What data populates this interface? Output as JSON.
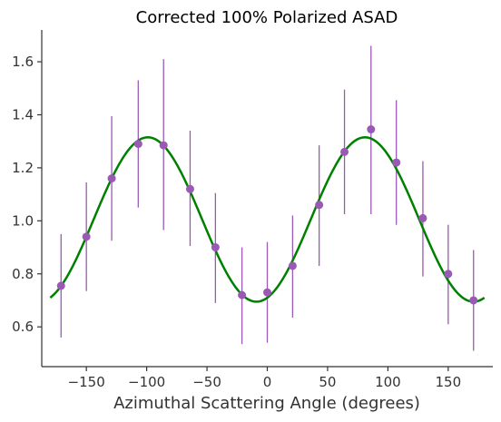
{
  "chart_data": {
    "type": "scatter",
    "title": "Corrected 100% Polarized ASAD",
    "xlabel": "Azimuthal Scattering Angle (degrees)",
    "ylabel": "",
    "xlim": [
      -187,
      187
    ],
    "ylim": [
      0.45,
      1.72
    ],
    "xticks": [
      -150,
      -100,
      -50,
      0,
      50,
      100,
      150
    ],
    "xtick_labels": [
      "−150",
      "−100",
      "−50",
      "0",
      "50",
      "100",
      "150"
    ],
    "yticks": [
      0.6,
      0.8,
      1.0,
      1.2,
      1.4,
      1.6
    ],
    "ytick_labels": [
      "0.6",
      "0.8",
      "1.0",
      "1.2",
      "1.4",
      "1.6"
    ],
    "grid": false,
    "colors": {
      "points": "#9b59b6",
      "errorbars": "#9b59b6",
      "fit": "#008000",
      "axes": "#333333"
    },
    "series": [
      {
        "kind": "points_with_errorbars",
        "x": [
          -171,
          -150,
          -129,
          -107,
          -86,
          -64,
          -43,
          -21,
          0,
          21,
          43,
          64,
          86,
          107,
          129,
          150,
          171
        ],
        "y": [
          0.755,
          0.94,
          1.16,
          1.29,
          1.285,
          1.12,
          0.9,
          0.72,
          0.73,
          0.83,
          1.06,
          1.26,
          1.345,
          1.22,
          1.01,
          0.8,
          0.7
        ],
        "yerr_low": [
          0.56,
          0.735,
          0.925,
          1.05,
          0.965,
          0.905,
          0.69,
          0.535,
          0.54,
          0.635,
          0.83,
          1.025,
          1.025,
          0.985,
          0.79,
          0.61,
          0.51
        ],
        "yerr_high": [
          0.95,
          1.145,
          1.395,
          1.53,
          1.61,
          1.34,
          1.105,
          0.9,
          0.92,
          1.02,
          1.285,
          1.495,
          1.66,
          1.455,
          1.225,
          0.985,
          0.89
        ]
      },
      {
        "kind": "fit_curve",
        "function": "A + B*cos(2*(x - phi))",
        "A": 1.005,
        "B": 0.31,
        "phi": 81,
        "x_range": [
          -180,
          180
        ]
      }
    ]
  }
}
